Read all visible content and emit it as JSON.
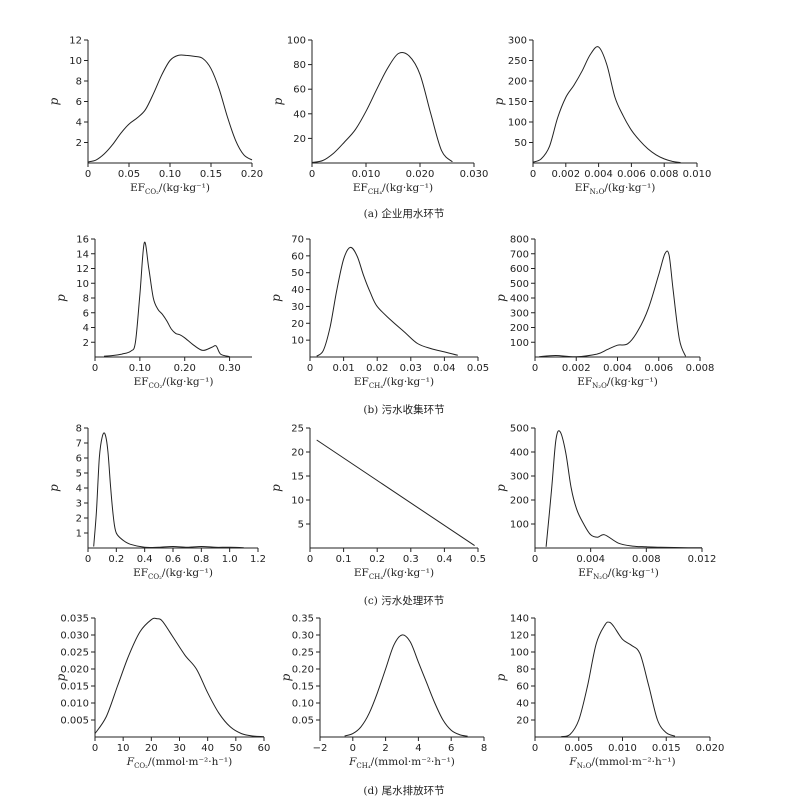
{
  "captions": [
    "(a) 企业用水环节",
    "(b) 污水收集环节",
    "(c) 污水处理环节",
    "(d) 尾水排放环节"
  ],
  "chart_data": [
    {
      "type": "line",
      "ylabel": "p",
      "xlabel_pre": "EF",
      "xlabel_sub": "CO₂",
      "xlabel_post": "/(kg·kg⁻¹)",
      "xlim": [
        0,
        0.2
      ],
      "ylim": [
        0,
        12
      ],
      "xticks": [
        0,
        0.05,
        0.1,
        0.15,
        0.2
      ],
      "xtick_labels": [
        "0",
        "0.05",
        "0.10",
        "0.15",
        "0.20"
      ],
      "yticks": [
        2,
        4,
        6,
        8,
        10,
        12
      ],
      "ytick_labels": [
        "2",
        "4",
        "6",
        "8",
        "10",
        "12"
      ],
      "x": [
        0,
        0.01,
        0.02,
        0.03,
        0.04,
        0.05,
        0.06,
        0.07,
        0.08,
        0.09,
        0.1,
        0.11,
        0.12,
        0.13,
        0.14,
        0.15,
        0.16,
        0.17,
        0.18,
        0.19,
        0.2
      ],
      "y": [
        0.1,
        0.3,
        0.9,
        1.8,
        2.9,
        3.8,
        4.4,
        5.2,
        6.8,
        8.6,
        10.0,
        10.5,
        10.5,
        10.4,
        10.2,
        9.2,
        7.2,
        4.5,
        2.2,
        0.8,
        0.3
      ]
    },
    {
      "type": "line",
      "ylabel": "p",
      "xlabel_pre": "EF",
      "xlabel_sub": "CH₄",
      "xlabel_post": "/(kg·kg⁻¹)",
      "xlim": [
        0,
        0.03
      ],
      "ylim": [
        0,
        100
      ],
      "xticks": [
        0,
        0.01,
        0.02,
        0.03
      ],
      "xtick_labels": [
        "0",
        "0.010",
        "0.020",
        "0.030"
      ],
      "yticks": [
        20,
        40,
        60,
        80,
        100
      ],
      "ytick_labels": [
        "20",
        "40",
        "60",
        "80",
        "100"
      ],
      "x": [
        0,
        0.002,
        0.004,
        0.006,
        0.008,
        0.01,
        0.012,
        0.014,
        0.016,
        0.018,
        0.02,
        0.022,
        0.024,
        0.026
      ],
      "y": [
        0.5,
        2,
        8,
        17,
        27,
        42,
        60,
        77,
        89,
        87,
        72,
        40,
        10,
        1
      ]
    },
    {
      "type": "line",
      "ylabel": "p",
      "xlabel_pre": "EF",
      "xlabel_sub": "N₂O",
      "xlabel_post": "/(kg·kg⁻¹)",
      "xlim": [
        0,
        0.01
      ],
      "ylim": [
        0,
        300
      ],
      "xticks": [
        0,
        0.002,
        0.004,
        0.006,
        0.008,
        0.01
      ],
      "xtick_labels": [
        "0",
        "0.002",
        "0.004",
        "0.006",
        "0.008",
        "0.010"
      ],
      "yticks": [
        50,
        100,
        150,
        200,
        250,
        300
      ],
      "ytick_labels": [
        "50",
        "100",
        "150",
        "200",
        "250",
        "300"
      ],
      "x": [
        0,
        0.0005,
        0.001,
        0.0015,
        0.002,
        0.0025,
        0.003,
        0.0035,
        0.004,
        0.0045,
        0.005,
        0.0055,
        0.006,
        0.0065,
        0.007,
        0.0075,
        0.008,
        0.0085,
        0.009
      ],
      "y": [
        2,
        10,
        40,
        110,
        160,
        190,
        225,
        265,
        283,
        240,
        160,
        115,
        80,
        55,
        35,
        20,
        10,
        4,
        1
      ]
    },
    {
      "type": "line",
      "ylabel": "p",
      "xlabel_pre": "EF",
      "xlabel_sub": "CO₂",
      "xlabel_post": "/(kg·kg⁻¹)",
      "xlim": [
        0,
        0.35
      ],
      "ylim": [
        0,
        16
      ],
      "xticks": [
        0,
        0.1,
        0.2,
        0.3
      ],
      "xtick_labels": [
        "0",
        "0.10",
        "0.20",
        "0.30"
      ],
      "yticks": [
        2,
        4,
        6,
        8,
        10,
        12,
        14,
        16
      ],
      "ytick_labels": [
        "2",
        "4",
        "6",
        "8",
        "10",
        "12",
        "14",
        "16"
      ],
      "x": [
        0.02,
        0.04,
        0.06,
        0.08,
        0.09,
        0.1,
        0.11,
        0.12,
        0.13,
        0.14,
        0.15,
        0.16,
        0.17,
        0.18,
        0.19,
        0.2,
        0.22,
        0.24,
        0.26,
        0.27,
        0.28,
        0.3
      ],
      "y": [
        0.1,
        0.2,
        0.4,
        0.8,
        2.0,
        8.5,
        15.5,
        12.0,
        8.0,
        6.5,
        5.8,
        4.9,
        3.8,
        3.2,
        3.0,
        2.6,
        1.6,
        0.9,
        1.3,
        1.5,
        0.4,
        0.05
      ]
    },
    {
      "type": "line",
      "ylabel": "p",
      "xlabel_pre": "EF",
      "xlabel_sub": "CH₄",
      "xlabel_post": "/(kg·kg⁻¹)",
      "xlim": [
        0,
        0.05
      ],
      "ylim": [
        0,
        70
      ],
      "xticks": [
        0,
        0.01,
        0.02,
        0.03,
        0.04,
        0.05
      ],
      "xtick_labels": [
        "0",
        "0.01",
        "0.02",
        "0.03",
        "0.04",
        "0.05"
      ],
      "yticks": [
        10,
        20,
        30,
        40,
        50,
        60,
        70
      ],
      "ytick_labels": [
        "10",
        "20",
        "30",
        "40",
        "50",
        "60",
        "70"
      ],
      "x": [
        0.002,
        0.004,
        0.006,
        0.008,
        0.01,
        0.012,
        0.014,
        0.016,
        0.018,
        0.02,
        0.024,
        0.028,
        0.032,
        0.036,
        0.04,
        0.044
      ],
      "y": [
        0.5,
        4,
        18,
        40,
        58,
        65,
        60,
        48,
        38,
        30,
        22,
        15,
        8,
        5,
        3,
        1
      ]
    },
    {
      "type": "line",
      "ylabel": "p",
      "xlabel_pre": "EF",
      "xlabel_sub": "N₂O",
      "xlabel_post": "/(kg·kg⁻¹)",
      "xlim": [
        0,
        0.008
      ],
      "ylim": [
        0,
        800
      ],
      "xticks": [
        0,
        0.002,
        0.004,
        0.006,
        0.008
      ],
      "xtick_labels": [
        "0",
        "0.002",
        "0.004",
        "0.006",
        "0.008"
      ],
      "yticks": [
        100,
        200,
        300,
        400,
        500,
        600,
        700,
        800
      ],
      "ytick_labels": [
        "100",
        "200",
        "300",
        "400",
        "500",
        "600",
        "700",
        "800"
      ],
      "x": [
        0.0002,
        0.001,
        0.002,
        0.003,
        0.0035,
        0.004,
        0.0045,
        0.005,
        0.0055,
        0.006,
        0.0063,
        0.0065,
        0.0067,
        0.007,
        0.0073
      ],
      "y": [
        2,
        10,
        2,
        20,
        50,
        80,
        90,
        180,
        330,
        560,
        700,
        690,
        450,
        120,
        5
      ]
    },
    {
      "type": "line",
      "ylabel": "p",
      "xlabel_pre": "EF",
      "xlabel_sub": "CO₂",
      "xlabel_post": "/(kg·kg⁻¹)",
      "xlim": [
        0,
        1.2
      ],
      "ylim": [
        0,
        8
      ],
      "xticks": [
        0,
        0.2,
        0.4,
        0.6,
        0.8,
        1.0,
        1.2
      ],
      "xtick_labels": [
        "0",
        "0.2",
        "0.4",
        "0.6",
        "0.8",
        "1.0",
        "1.2"
      ],
      "yticks": [
        1,
        2,
        3,
        4,
        5,
        6,
        7,
        8
      ],
      "ytick_labels": [
        "1",
        "2",
        "3",
        "4",
        "5",
        "6",
        "7",
        "8"
      ],
      "x": [
        0.04,
        0.06,
        0.08,
        0.1,
        0.12,
        0.14,
        0.16,
        0.18,
        0.2,
        0.25,
        0.3,
        0.4,
        0.5,
        0.6,
        0.7,
        0.8,
        0.9,
        1.0,
        1.1
      ],
      "y": [
        0.1,
        2.5,
        6.0,
        7.4,
        7.6,
        6.5,
        4.0,
        2.0,
        1.0,
        0.5,
        0.25,
        0.05,
        0.05,
        0.1,
        0.05,
        0.1,
        0.05,
        0.05,
        0.02
      ]
    },
    {
      "type": "line",
      "ylabel": "p",
      "xlabel_pre": "EF",
      "xlabel_sub": "CH₄",
      "xlabel_post": "/(kg·kg⁻¹)",
      "xlim": [
        0,
        0.5
      ],
      "ylim": [
        0,
        25
      ],
      "xticks": [
        0,
        0.1,
        0.2,
        0.3,
        0.4,
        0.5
      ],
      "xtick_labels": [
        "0",
        "0.1",
        "0.2",
        "0.3",
        "0.4",
        "0.5"
      ],
      "yticks": [
        5,
        10,
        15,
        20,
        25
      ],
      "ytick_labels": [
        "5",
        "10",
        "15",
        "20",
        "25"
      ],
      "x": [
        0.02,
        0.49
      ],
      "y": [
        22.5,
        0.5
      ]
    },
    {
      "type": "line",
      "ylabel": "p",
      "xlabel_pre": "EF",
      "xlabel_sub": "N₂O",
      "xlabel_post": "/(kg·kg⁻¹)",
      "xlim": [
        0,
        0.012
      ],
      "ylim": [
        0,
        500
      ],
      "xticks": [
        0,
        0.004,
        0.008,
        0.012
      ],
      "xtick_labels": [
        "0",
        "0.004",
        "0.008",
        "0.012"
      ],
      "yticks": [
        100,
        200,
        300,
        400,
        500
      ],
      "ytick_labels": [
        "100",
        "200",
        "300",
        "400",
        "500"
      ],
      "x": [
        0.0008,
        0.0012,
        0.0015,
        0.0018,
        0.0022,
        0.0026,
        0.003,
        0.0035,
        0.004,
        0.0045,
        0.005,
        0.006,
        0.007,
        0.008,
        0.009,
        0.01,
        0.011,
        0.012
      ],
      "y": [
        5,
        250,
        450,
        485,
        400,
        250,
        160,
        100,
        55,
        45,
        55,
        20,
        8,
        5,
        3,
        2,
        1,
        1
      ]
    },
    {
      "type": "line",
      "ylabel": "p",
      "xlabel_pre": "F",
      "xlabel_sub": "CO₂",
      "xlabel_post": "/(mmol·m⁻²·h⁻¹)",
      "xlim": [
        0,
        60
      ],
      "ylim": [
        0,
        0.035
      ],
      "xticks": [
        0,
        10,
        20,
        30,
        40,
        50,
        60
      ],
      "xtick_labels": [
        "0",
        "10",
        "20",
        "30",
        "40",
        "50",
        "60"
      ],
      "yticks": [
        0.005,
        0.01,
        0.015,
        0.02,
        0.025,
        0.03,
        0.035
      ],
      "ytick_labels": [
        "0.005",
        "0.010",
        "0.015",
        "0.020",
        "0.025",
        "0.030",
        "0.035"
      ],
      "x": [
        0,
        4,
        8,
        12,
        16,
        20,
        22,
        24,
        28,
        32,
        36,
        40,
        44,
        48,
        52,
        56,
        60
      ],
      "y": [
        0.001,
        0.006,
        0.015,
        0.024,
        0.031,
        0.0345,
        0.0348,
        0.034,
        0.029,
        0.024,
        0.02,
        0.013,
        0.007,
        0.003,
        0.001,
        0.0003,
        0.0001
      ]
    },
    {
      "type": "line",
      "ylabel": "p",
      "xlabel_pre": "F",
      "xlabel_sub": "CH₄",
      "xlabel_post": "/(mmol·m⁻²·h⁻¹)",
      "xlim": [
        -2,
        8
      ],
      "ylim": [
        0,
        0.35
      ],
      "xticks": [
        -2,
        0,
        2,
        4,
        6,
        8
      ],
      "xtick_labels": [
        "−2",
        "0",
        "2",
        "4",
        "6",
        "8"
      ],
      "yticks": [
        0.05,
        0.1,
        0.15,
        0.2,
        0.25,
        0.3,
        0.35
      ],
      "ytick_labels": [
        "0.05",
        "0.10",
        "0.15",
        "0.20",
        "0.25",
        "0.30",
        "0.35"
      ],
      "x": [
        -0.5,
        0,
        0.5,
        1,
        1.5,
        2,
        2.5,
        3,
        3.5,
        4,
        4.5,
        5,
        5.5,
        6,
        6.5,
        7
      ],
      "y": [
        0.003,
        0.01,
        0.03,
        0.07,
        0.13,
        0.2,
        0.27,
        0.3,
        0.28,
        0.22,
        0.16,
        0.1,
        0.05,
        0.02,
        0.007,
        0.002
      ]
    },
    {
      "type": "line",
      "ylabel": "p",
      "xlabel_pre": "F",
      "xlabel_sub": "N₂O",
      "xlabel_post": "/(mmol·m⁻²·h⁻¹)",
      "xlim": [
        0,
        0.02
      ],
      "ylim": [
        0,
        140
      ],
      "xticks": [
        0,
        0.005,
        0.01,
        0.015,
        0.02
      ],
      "xtick_labels": [
        "0",
        "0.005",
        "0.010",
        "0.015",
        "0.020"
      ],
      "yticks": [
        20,
        40,
        60,
        80,
        100,
        120,
        140
      ],
      "ytick_labels": [
        "20",
        "40",
        "60",
        "80",
        "100",
        "120",
        "140"
      ],
      "x": [
        0.003,
        0.004,
        0.005,
        0.006,
        0.007,
        0.008,
        0.0085,
        0.009,
        0.01,
        0.011,
        0.012,
        0.013,
        0.014,
        0.015,
        0.016
      ],
      "y": [
        0.5,
        3,
        20,
        60,
        110,
        132,
        135,
        130,
        115,
        108,
        98,
        60,
        20,
        5,
        1
      ]
    }
  ]
}
